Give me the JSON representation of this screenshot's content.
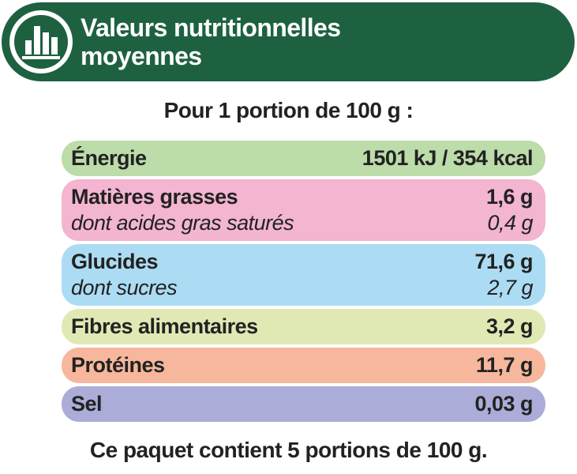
{
  "header": {
    "title": "Valeurs nutritionnelles moyennes"
  },
  "portion": "Pour 1 portion de 100 g :",
  "rows": [
    {
      "label": "Énergie",
      "value": "1501 kJ / 354 kcal",
      "color": "#bcdca9"
    },
    {
      "label": "Matières grasses",
      "value": "1,6 g",
      "sub_label": "dont acides gras saturés",
      "sub_value": "0,4 g",
      "color": "#f3b5d0"
    },
    {
      "label": "Glucides",
      "value": "71,6 g",
      "sub_label": "dont sucres",
      "sub_value": "2,7 g",
      "color": "#acdcf3"
    },
    {
      "label": "Fibres alimentaires",
      "value": "3,2 g",
      "color": "#e0e9b4"
    },
    {
      "label": "Protéines",
      "value": "11,7 g",
      "color": "#f6b79d"
    },
    {
      "label": "Sel",
      "value": "0,03 g",
      "color": "#abacd8"
    }
  ],
  "footer": "Ce paquet contient 5 portions de 100 g."
}
